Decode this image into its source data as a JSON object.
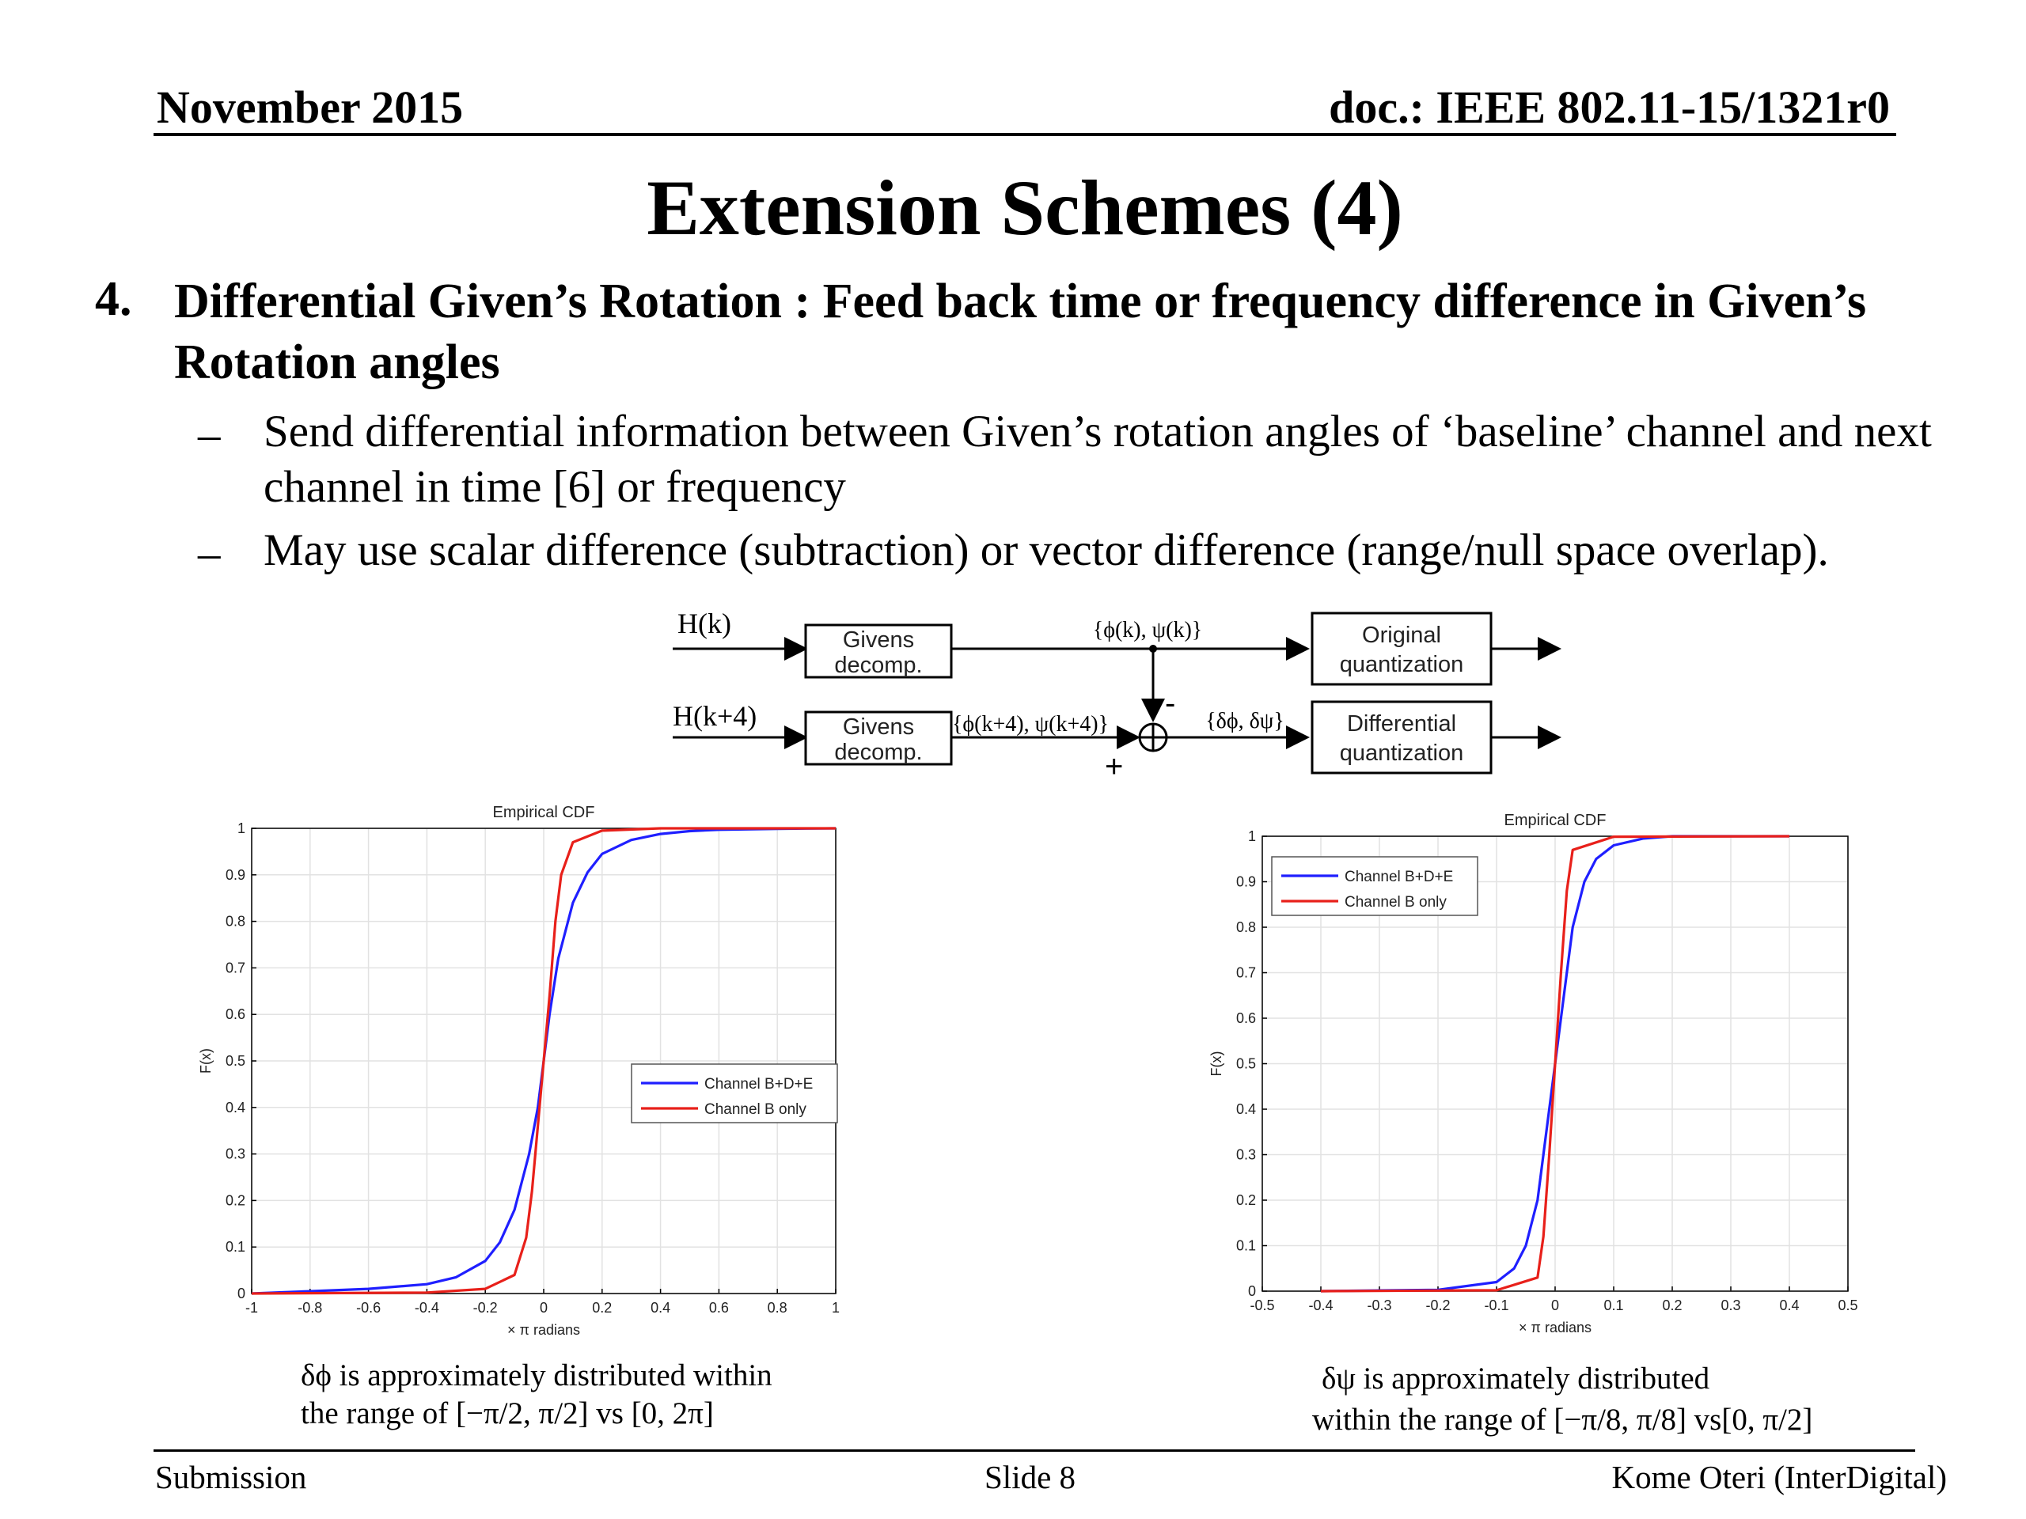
{
  "header": {
    "date": "November 2015",
    "doc": "doc.: IEEE 802.11-15/1321r0"
  },
  "title": "Extension Schemes (4)",
  "main_point": {
    "number": "4.",
    "text": "Differential Given’s Rotation : Feed back time or frequency difference in Given’s Rotation angles"
  },
  "sub_points": [
    {
      "dash": "–",
      "text": "Send differential information between Given’s rotation angles of ‘baseline’ channel and next channel in time [6] or frequency"
    },
    {
      "dash": "–",
      "text": "May use scalar difference (subtraction) or vector difference (range/null space overlap)."
    }
  ],
  "diagram": {
    "input_top": "H(k)",
    "input_bottom": "H(k+4)",
    "box_givens_line1": "Givens",
    "box_givens_line2": "decomp.",
    "signal_top": "{ϕ(k), ψ(k)}",
    "signal_bottom": "{ϕ(k+4), ψ(k+4)}",
    "signal_diff": "{δϕ, δψ}",
    "minus": "-",
    "plus": "+",
    "box_orig_line1": "Original",
    "box_orig_line2": "quantization",
    "box_diff_line1": "Differential",
    "box_diff_line2": "quantization"
  },
  "chart_data": [
    {
      "type": "line",
      "title": "Empirical CDF",
      "xlabel": "× π radians",
      "ylabel": "F(x)",
      "xlim": [
        -1,
        1
      ],
      "ylim": [
        0,
        1
      ],
      "xticks": [
        "-1",
        "-0.8",
        "-0.6",
        "-0.4",
        "-0.2",
        "0",
        "0.2",
        "0.4",
        "0.6",
        "0.8",
        "1"
      ],
      "yticks": [
        "0",
        "0.1",
        "0.2",
        "0.3",
        "0.4",
        "0.5",
        "0.6",
        "0.7",
        "0.8",
        "0.9",
        "1"
      ],
      "grid": true,
      "legend_position": "lower-right",
      "series": [
        {
          "name": "Channel B+D+E",
          "color": "#1f1fff",
          "x": [
            -1,
            -0.8,
            -0.6,
            -0.4,
            -0.3,
            -0.2,
            -0.15,
            -0.1,
            -0.05,
            -0.02,
            0,
            0.02,
            0.05,
            0.1,
            0.15,
            0.2,
            0.3,
            0.4,
            0.5,
            0.6,
            0.8,
            1
          ],
          "y": [
            0.0,
            0.005,
            0.01,
            0.02,
            0.035,
            0.07,
            0.11,
            0.18,
            0.3,
            0.4,
            0.5,
            0.6,
            0.72,
            0.84,
            0.905,
            0.945,
            0.975,
            0.988,
            0.994,
            0.997,
            0.999,
            1.0
          ]
        },
        {
          "name": "Channel B only",
          "color": "#e8201a",
          "x": [
            -1,
            -0.4,
            -0.2,
            -0.1,
            -0.06,
            -0.04,
            -0.02,
            0,
            0.02,
            0.04,
            0.06,
            0.1,
            0.2,
            0.4,
            1
          ],
          "y": [
            0.0,
            0.002,
            0.01,
            0.04,
            0.12,
            0.22,
            0.36,
            0.5,
            0.64,
            0.8,
            0.9,
            0.97,
            0.995,
            1.0,
            1.0
          ]
        }
      ]
    },
    {
      "type": "line",
      "title": "Empirical CDF",
      "xlabel": "× π radians",
      "ylabel": "F(x)",
      "xlim": [
        -0.5,
        0.5
      ],
      "ylim": [
        0,
        1
      ],
      "xticks": [
        "-0.5",
        "-0.4",
        "-0.3",
        "-0.2",
        "-0.1",
        "0",
        "0.1",
        "0.2",
        "0.3",
        "0.4",
        "0.5"
      ],
      "yticks": [
        "0",
        "0.1",
        "0.2",
        "0.3",
        "0.4",
        "0.5",
        "0.6",
        "0.7",
        "0.8",
        "0.9",
        "1"
      ],
      "grid": true,
      "legend_position": "upper-left",
      "series": [
        {
          "name": "Channel B+D+E",
          "color": "#1f1fff",
          "x": [
            -0.4,
            -0.2,
            -0.1,
            -0.07,
            -0.05,
            -0.03,
            -0.02,
            -0.01,
            0,
            0.01,
            0.02,
            0.03,
            0.05,
            0.07,
            0.1,
            0.15,
            0.2,
            0.4
          ],
          "y": [
            0.0,
            0.003,
            0.02,
            0.05,
            0.1,
            0.2,
            0.3,
            0.4,
            0.5,
            0.6,
            0.7,
            0.8,
            0.9,
            0.95,
            0.98,
            0.995,
            1.0,
            1.0
          ]
        },
        {
          "name": "Channel B only",
          "color": "#e8201a",
          "x": [
            -0.4,
            -0.1,
            -0.03,
            -0.02,
            -0.01,
            0,
            0.01,
            0.02,
            0.03,
            0.1,
            0.4
          ],
          "y": [
            0.0,
            0.002,
            0.03,
            0.12,
            0.3,
            0.5,
            0.7,
            0.88,
            0.97,
            0.999,
            1.0
          ]
        }
      ]
    }
  ],
  "captions": {
    "left_line1": "δϕ is approximately distributed within",
    "left_line2": "the range of [−π/2, π/2] vs [0, 2π]",
    "right_line1": "δψ is approximately distributed",
    "right_line2": "within the range of [−π/8, π/8] vs[0, π/2]"
  },
  "footer": {
    "left": "Submission",
    "center": "Slide 8",
    "right": "Kome Oteri (InterDigital)"
  }
}
